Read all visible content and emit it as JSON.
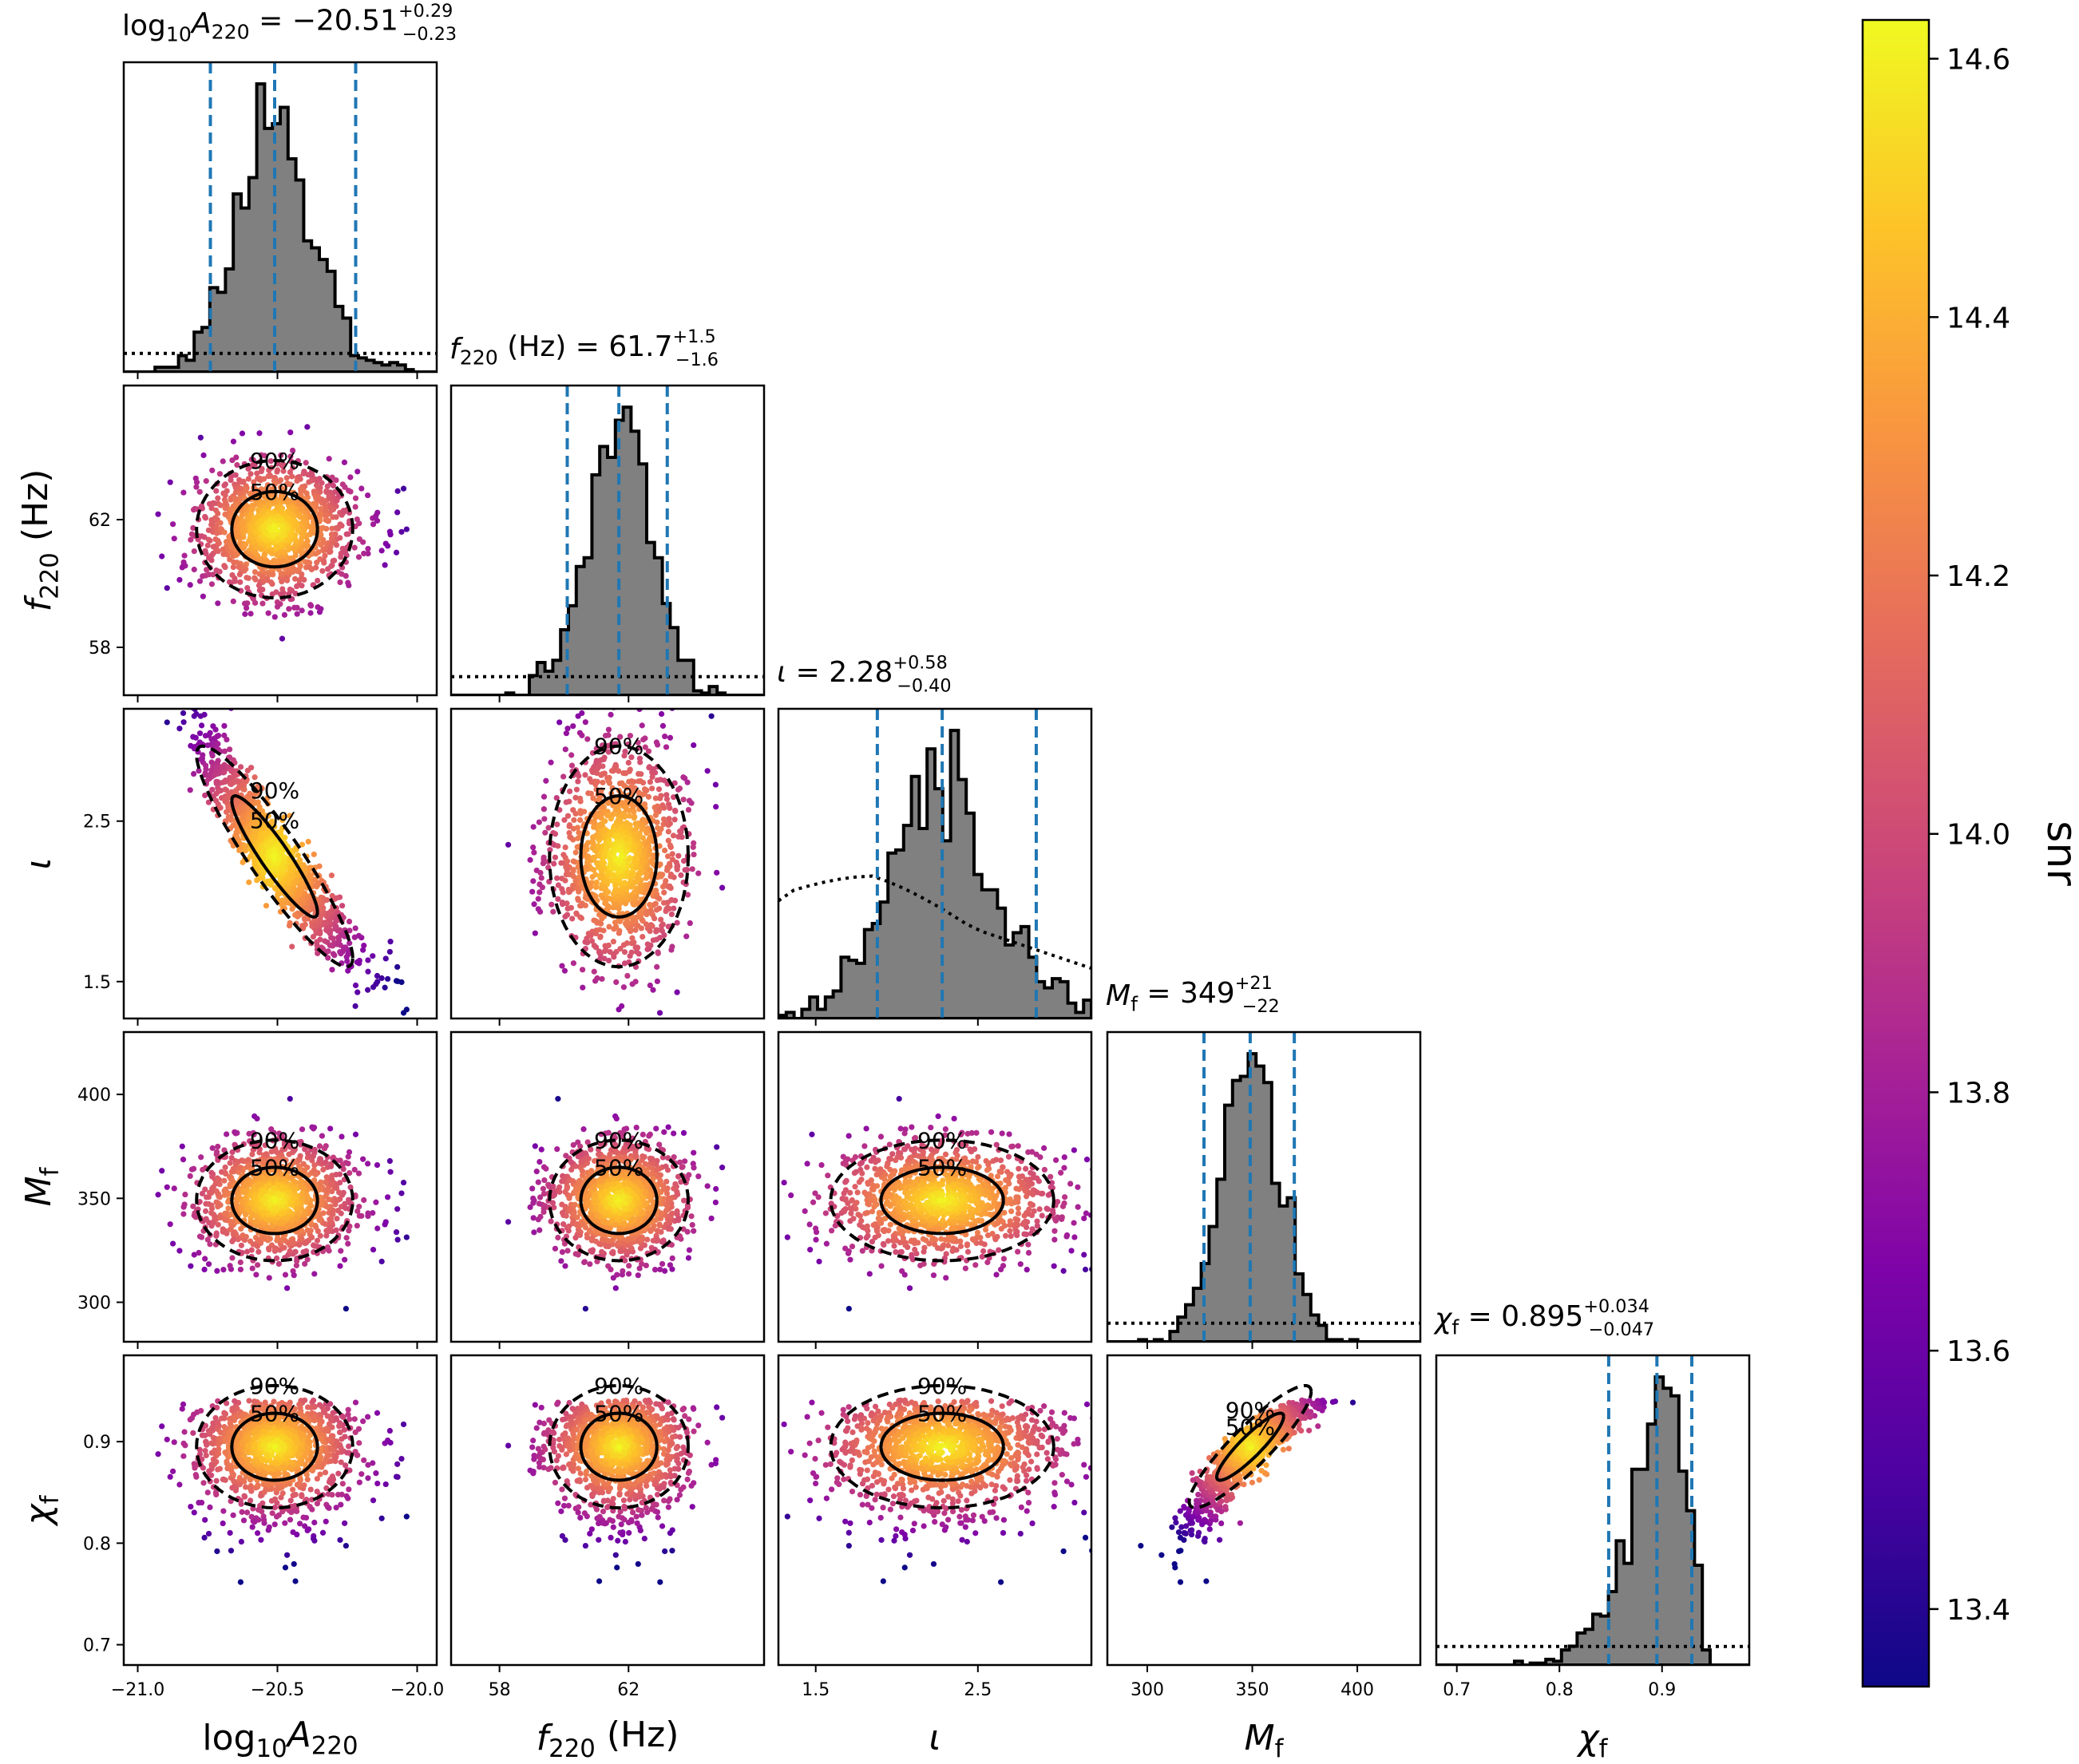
{
  "chart_data": {
    "type": "scatter",
    "layout": "corner",
    "parameters": [
      {
        "key": "logA",
        "label_main": "log",
        "label_sub1": "10",
        "label_mid": "A",
        "label_sub2": "220",
        "range": [
          -21.05,
          -19.93
        ],
        "ticks": [
          -21.0,
          -20.5,
          -20.0
        ],
        "tick_labels": [
          "−21.0",
          "−20.5",
          "−20.0"
        ],
        "median": -20.51,
        "plus": "+0.29",
        "minus": "−0.23",
        "value_text": "−20.51",
        "title_rest": " = ",
        "unit": ""
      },
      {
        "key": "f220",
        "label_main": "f",
        "label_sub1": "220",
        "label_mid": "",
        "label_sub2": "",
        "range": [
          56.5,
          66.2
        ],
        "ticks": [
          58,
          62
        ],
        "tick_labels": [
          "58",
          "62"
        ],
        "median": 61.7,
        "plus": "+1.5",
        "minus": "−1.6",
        "value_text": "61.7",
        "title_rest": " (Hz) = ",
        "unit": " (Hz)"
      },
      {
        "key": "iota",
        "label_main": "ι",
        "label_sub1": "",
        "label_mid": "",
        "label_sub2": "",
        "range": [
          1.27,
          3.2
        ],
        "ticks": [
          1.5,
          2.5
        ],
        "tick_labels": [
          "1.5",
          "2.5"
        ],
        "median": 2.28,
        "plus": "+0.58",
        "minus": "−0.40",
        "value_text": "2.28",
        "title_rest": " = ",
        "unit": ""
      },
      {
        "key": "Mf",
        "label_main": "M",
        "label_sub1": "f",
        "label_mid": "",
        "label_sub2": "",
        "range": [
          281,
          430
        ],
        "ticks": [
          300,
          350,
          400
        ],
        "tick_labels": [
          "300",
          "350",
          "400"
        ],
        "median": 349,
        "plus": "+21",
        "minus": "−22",
        "value_text": "349",
        "title_rest": " = ",
        "unit": ""
      },
      {
        "key": "chi",
        "label_main": "χ",
        "label_sub1": "f",
        "label_mid": "",
        "label_sub2": "",
        "range": [
          0.68,
          0.985
        ],
        "ticks": [
          0.7,
          0.8,
          0.9
        ],
        "tick_labels": [
          "0.7",
          "0.8",
          "0.9"
        ],
        "median": 0.895,
        "plus": "+0.034",
        "minus": "−0.047",
        "value_text": "0.895",
        "title_rest": " = ",
        "unit": ""
      }
    ],
    "quantile_lines": [
      [
        -20.74,
        -20.51,
        -20.22
      ],
      [
        60.1,
        61.7,
        63.2
      ],
      [
        1.88,
        2.28,
        2.86
      ],
      [
        327,
        349,
        370
      ],
      [
        0.848,
        0.895,
        0.929
      ]
    ],
    "contour_levels": [
      "50%",
      "90%"
    ],
    "colorbar": {
      "label": "snr",
      "range": [
        13.34,
        14.63
      ],
      "ticks": [
        13.4,
        13.6,
        13.8,
        14.0,
        14.2,
        14.4,
        14.6
      ],
      "tick_labels": [
        "13.4",
        "13.6",
        "13.8",
        "14.0",
        "14.2",
        "14.4",
        "14.6"
      ],
      "colormap": "plasma"
    },
    "colors": {
      "histogram_fill": "#808080",
      "histogram_edge": "#000000",
      "quantile_line": "#1f77b4",
      "prior_line": "#000000",
      "contour": "#000000"
    }
  }
}
